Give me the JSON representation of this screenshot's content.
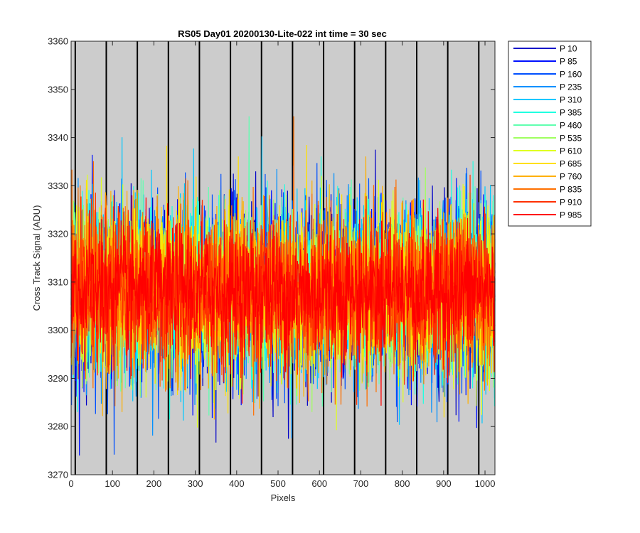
{
  "chart_data": {
    "type": "line",
    "title": "RS05 Day01 20200130-Lite-022 int time = 30 sec",
    "xlabel": "Pixels",
    "ylabel": "Cross Track Signal (ADU)",
    "xlim": [
      0,
      1024
    ],
    "ylim": [
      3270,
      3360
    ],
    "x_ticks": [
      0,
      100,
      200,
      300,
      400,
      500,
      600,
      700,
      800,
      900,
      1000
    ],
    "y_ticks": [
      3270,
      3280,
      3290,
      3300,
      3310,
      3320,
      3330,
      3340,
      3350,
      3360
    ],
    "plot_background": "#cccccc",
    "vertical_markers": [
      10,
      85,
      160,
      235,
      310,
      385,
      460,
      535,
      610,
      685,
      760,
      835,
      910,
      985
    ],
    "legend_position": "outside-top-right",
    "series": [
      {
        "name": "P 10",
        "color": "#0000c8",
        "mean": 3308,
        "std": 9.0
      },
      {
        "name": "P 85",
        "color": "#0010ff",
        "mean": 3308,
        "std": 9.0
      },
      {
        "name": "P 160",
        "color": "#0050ff",
        "mean": 3308,
        "std": 9.0
      },
      {
        "name": "P 235",
        "color": "#0090ff",
        "mean": 3308,
        "std": 9.0
      },
      {
        "name": "P 310",
        "color": "#00c8ff",
        "mean": 3308,
        "std": 9.0
      },
      {
        "name": "P 385",
        "color": "#20ffe0",
        "mean": 3308,
        "std": 8.5
      },
      {
        "name": "P 460",
        "color": "#60ffb0",
        "mean": 3308,
        "std": 8.5
      },
      {
        "name": "P 535",
        "color": "#a0ff60",
        "mean": 3308,
        "std": 8.5
      },
      {
        "name": "P 610",
        "color": "#e0ff20",
        "mean": 3308,
        "std": 8.5
      },
      {
        "name": "P 685",
        "color": "#ffe000",
        "mean": 3308,
        "std": 8.5
      },
      {
        "name": "P 760",
        "color": "#ffb000",
        "mean": 3308,
        "std": 8.5
      },
      {
        "name": "P 835",
        "color": "#ff7000",
        "mean": 3308,
        "std": 8.5
      },
      {
        "name": "P 910",
        "color": "#ff3000",
        "mean": 3308,
        "std": 8.0
      },
      {
        "name": "P 985",
        "color": "#ff0000",
        "mean": 3308,
        "std": 7.0
      }
    ]
  }
}
